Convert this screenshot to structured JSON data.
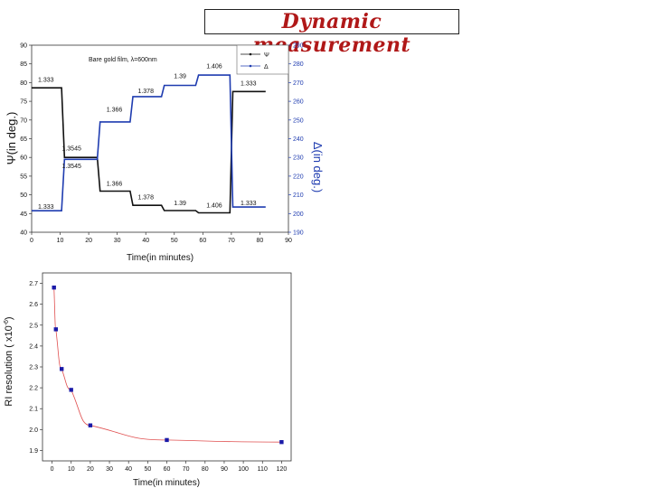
{
  "slide": {
    "title": "Dynamic measurement"
  },
  "chart_data": [
    {
      "type": "line",
      "annotation": "Bare gold film, λ=600nm",
      "xlabel": "Time(in minutes)",
      "ylabel_left": "Ψ(in deg.)",
      "ylabel_right": "Δ(in deg.)",
      "xlim": [
        0,
        90
      ],
      "xticks": [
        0,
        10,
        20,
        30,
        40,
        50,
        60,
        70,
        80,
        90
      ],
      "ylim_left": [
        40,
        90
      ],
      "yticks_left": [
        40,
        45,
        50,
        55,
        60,
        65,
        70,
        75,
        80,
        85,
        90
      ],
      "ylim_right": [
        190,
        290
      ],
      "yticks_right": [
        190,
        200,
        210,
        220,
        230,
        240,
        250,
        260,
        270,
        280,
        290
      ],
      "legend_position": "top-right",
      "series": [
        {
          "name": "Ψ",
          "axis": "left",
          "color": "#111111",
          "x": [
            0,
            10.5,
            11.5,
            23,
            24,
            34.5,
            35.5,
            45.5,
            46.5,
            57.5,
            58.5,
            69.5,
            70.5,
            82
          ],
          "y": [
            78.6,
            78.6,
            60,
            60,
            51,
            51,
            47.2,
            47.2,
            45.8,
            45.8,
            45.2,
            45.2,
            77.6,
            77.6
          ]
        },
        {
          "name": "Δ",
          "axis": "right",
          "color": "#1f3cb0",
          "x": [
            0,
            10.5,
            11.5,
            23,
            24,
            34.5,
            35.5,
            45.5,
            46.5,
            57.5,
            58.5,
            69.5,
            70.5,
            82
          ],
          "y": [
            201.5,
            201.5,
            229,
            229,
            249,
            249,
            262.5,
            262.5,
            268.5,
            268.5,
            274,
            274,
            203.5,
            203.5
          ]
        }
      ],
      "labels": [
        {
          "text": "1.333",
          "x": 5,
          "y": 80.2,
          "axis": "left"
        },
        {
          "text": "1.3545",
          "x": 14,
          "y": 61.8,
          "axis": "left"
        },
        {
          "text": "1.366",
          "x": 29,
          "y": 72.2,
          "axis": "left"
        },
        {
          "text": "1.378",
          "x": 40,
          "y": 77.2,
          "axis": "left"
        },
        {
          "text": "1.39",
          "x": 52,
          "y": 81.2,
          "axis": "left"
        },
        {
          "text": "1.406",
          "x": 64,
          "y": 83.9,
          "axis": "left"
        },
        {
          "text": "1.333",
          "x": 76,
          "y": 79.2,
          "axis": "left"
        },
        {
          "text": "1.333",
          "x": 5,
          "y": 46.3,
          "axis": "left"
        },
        {
          "text": "1.3545",
          "x": 14,
          "y": 57.1,
          "axis": "left"
        },
        {
          "text": "1.366",
          "x": 29,
          "y": 52.5,
          "axis": "left"
        },
        {
          "text": "1.378",
          "x": 40,
          "y": 48.8,
          "axis": "left"
        },
        {
          "text": "1.39",
          "x": 52,
          "y": 47.3,
          "axis": "left"
        },
        {
          "text": "1.406",
          "x": 64,
          "y": 46.7,
          "axis": "left"
        },
        {
          "text": "1.333",
          "x": 76,
          "y": 47.3,
          "axis": "left"
        }
      ]
    },
    {
      "type": "scatter",
      "xlabel": "Time(in minutes)",
      "ylabel": "RI resolution ( x10",
      "ylabel_exp": "-6",
      "ylabel_suffix": ")",
      "xlim": [
        -5,
        125
      ],
      "xticks": [
        0,
        10,
        20,
        30,
        40,
        50,
        60,
        70,
        80,
        90,
        100,
        110,
        120
      ],
      "ylim": [
        1.85,
        2.75
      ],
      "yticks": [
        1.9,
        2.0,
        2.1,
        2.2,
        2.3,
        2.4,
        2.5,
        2.6,
        2.7
      ],
      "marker_color": "#1a1aa8",
      "line_color": "#e05050",
      "x": [
        1,
        2,
        5,
        10,
        20,
        60,
        120
      ],
      "y": [
        2.68,
        2.48,
        2.29,
        2.19,
        2.02,
        1.95,
        1.94
      ]
    }
  ]
}
